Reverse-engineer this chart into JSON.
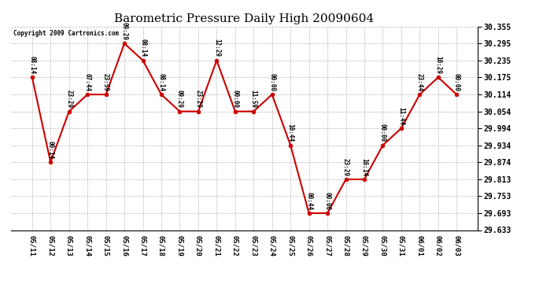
{
  "title": "Barometric Pressure Daily High 20090604",
  "copyright": "Copyright 2009 Cartronics.com",
  "x_labels": [
    "05/11",
    "05/12",
    "05/13",
    "05/14",
    "05/15",
    "05/16",
    "05/17",
    "05/18",
    "05/19",
    "05/20",
    "05/21",
    "05/22",
    "05/23",
    "05/24",
    "05/25",
    "05/26",
    "05/27",
    "05/28",
    "05/29",
    "05/30",
    "05/31",
    "06/01",
    "06/02",
    "06/03"
  ],
  "y_values": [
    30.175,
    29.874,
    30.054,
    30.114,
    30.114,
    30.295,
    30.235,
    30.114,
    30.054,
    30.054,
    30.235,
    30.054,
    30.054,
    30.114,
    29.934,
    29.693,
    29.693,
    29.813,
    29.813,
    29.934,
    29.994,
    30.114,
    30.175,
    30.114
  ],
  "point_labels": [
    "08:14",
    "00:14",
    "23:29",
    "07:44",
    "23:59",
    "09:29",
    "08:14",
    "08:14",
    "09:29",
    "23:29",
    "12:29",
    "00:00",
    "11:59",
    "00:00",
    "10:44",
    "00:44",
    "00:00",
    "23:29",
    "16:14",
    "00:00",
    "11:44",
    "23:44",
    "10:29",
    "00:00"
  ],
  "ylim_min": 29.633,
  "ylim_max": 30.355,
  "yticks": [
    29.633,
    29.693,
    29.753,
    29.813,
    29.874,
    29.934,
    29.994,
    30.054,
    30.114,
    30.175,
    30.235,
    30.295,
    30.355
  ],
  "line_color": "#cc0000",
  "marker_color": "#cc0000",
  "bg_color": "#ffffff",
  "grid_color": "#999999",
  "title_fontsize": 11,
  "label_fontsize": 7
}
